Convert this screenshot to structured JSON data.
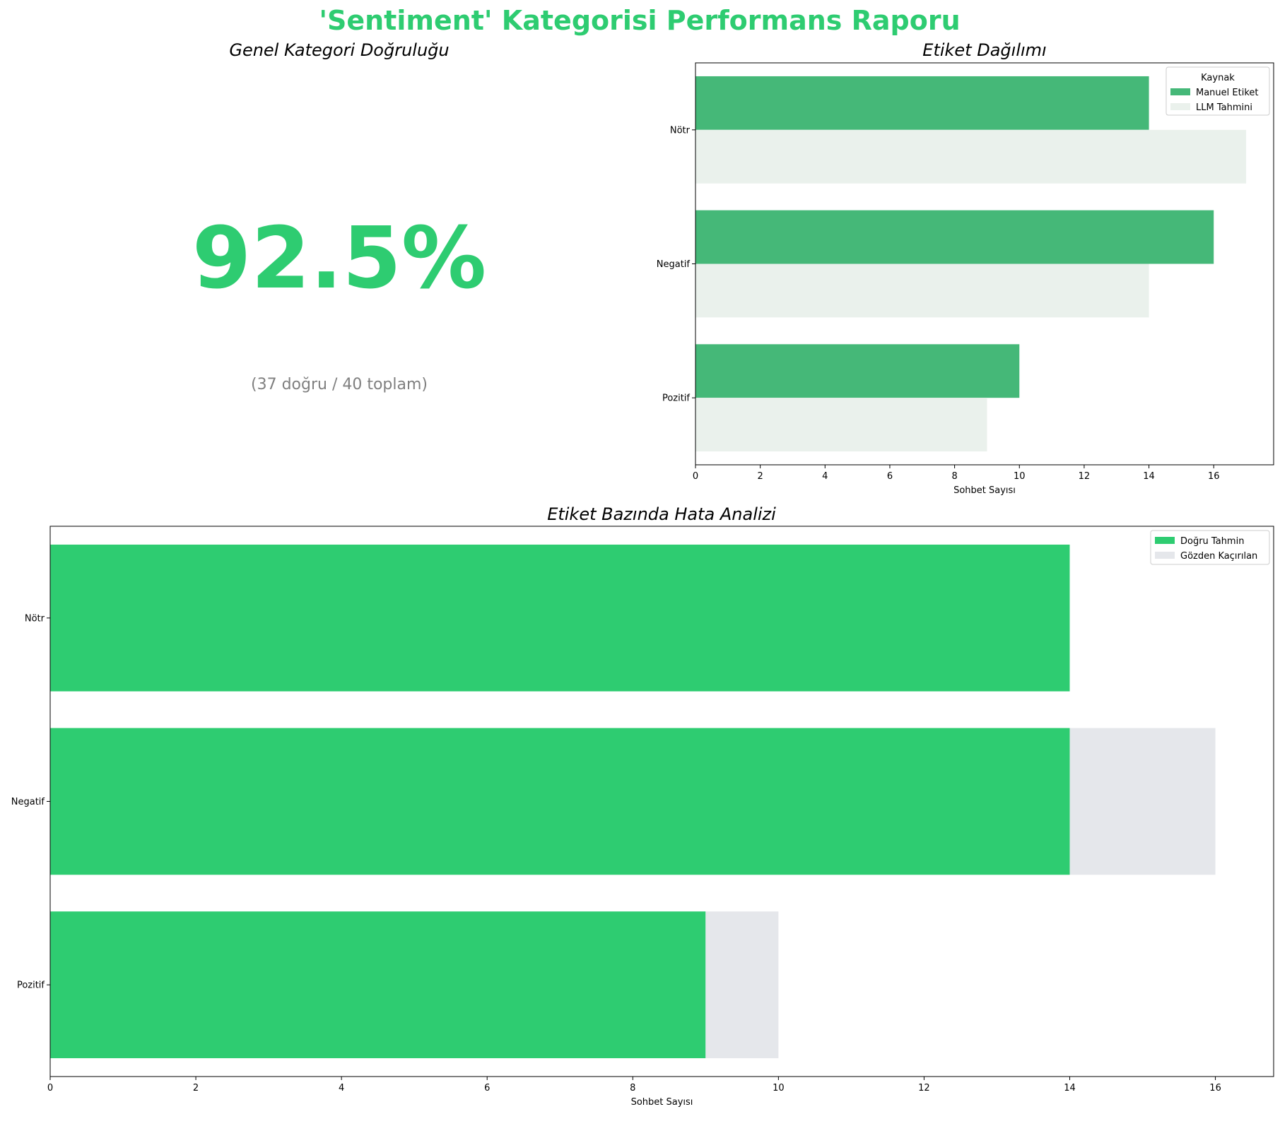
{
  "page": {
    "title": "'Sentiment' Kategorisi Performans Raporu",
    "accent_color": "#2ECC71"
  },
  "kpi": {
    "title": "Genel Kategori Doğruluğu",
    "value": "92.5%",
    "detail": "(37 doğru / 40 toplam)"
  },
  "chart_data": [
    {
      "type": "bar",
      "orientation": "horizontal",
      "title": "Etiket Dağılımı",
      "categories": [
        "Nötr",
        "Negatif",
        "Pozitif"
      ],
      "series": [
        {
          "name": "Manuel Etiket",
          "values": [
            14,
            16,
            10
          ],
          "color": "#45B878"
        },
        {
          "name": "LLM Tahmini",
          "values": [
            17,
            14,
            9
          ],
          "color": "#EAF1EC"
        }
      ],
      "xlabel": "Sohbet Sayısı",
      "ylabel": "",
      "xlim": [
        0,
        17.85
      ],
      "xticks": [
        0,
        2,
        4,
        6,
        8,
        10,
        12,
        14,
        16
      ],
      "legend": {
        "title": "Kaynak",
        "placement": "top-right"
      },
      "grid": false
    },
    {
      "type": "bar",
      "orientation": "horizontal",
      "stacked": true,
      "title": "Etiket Bazında Hata Analizi",
      "categories": [
        "Nötr",
        "Negatif",
        "Pozitif"
      ],
      "series": [
        {
          "name": "Doğru Tahmin",
          "values": [
            14,
            14,
            9
          ],
          "color": "#2ECC71"
        },
        {
          "name": "Gözden Kaçırılan",
          "values": [
            0,
            2,
            1
          ],
          "color": "#E5E7EB"
        }
      ],
      "xlabel": "Sohbet Sayısı",
      "ylabel": "",
      "xlim": [
        0,
        16.8
      ],
      "xticks": [
        0,
        2,
        4,
        6,
        8,
        10,
        12,
        14,
        16
      ],
      "legend": {
        "title": "",
        "placement": "top-right"
      },
      "grid": false
    }
  ]
}
